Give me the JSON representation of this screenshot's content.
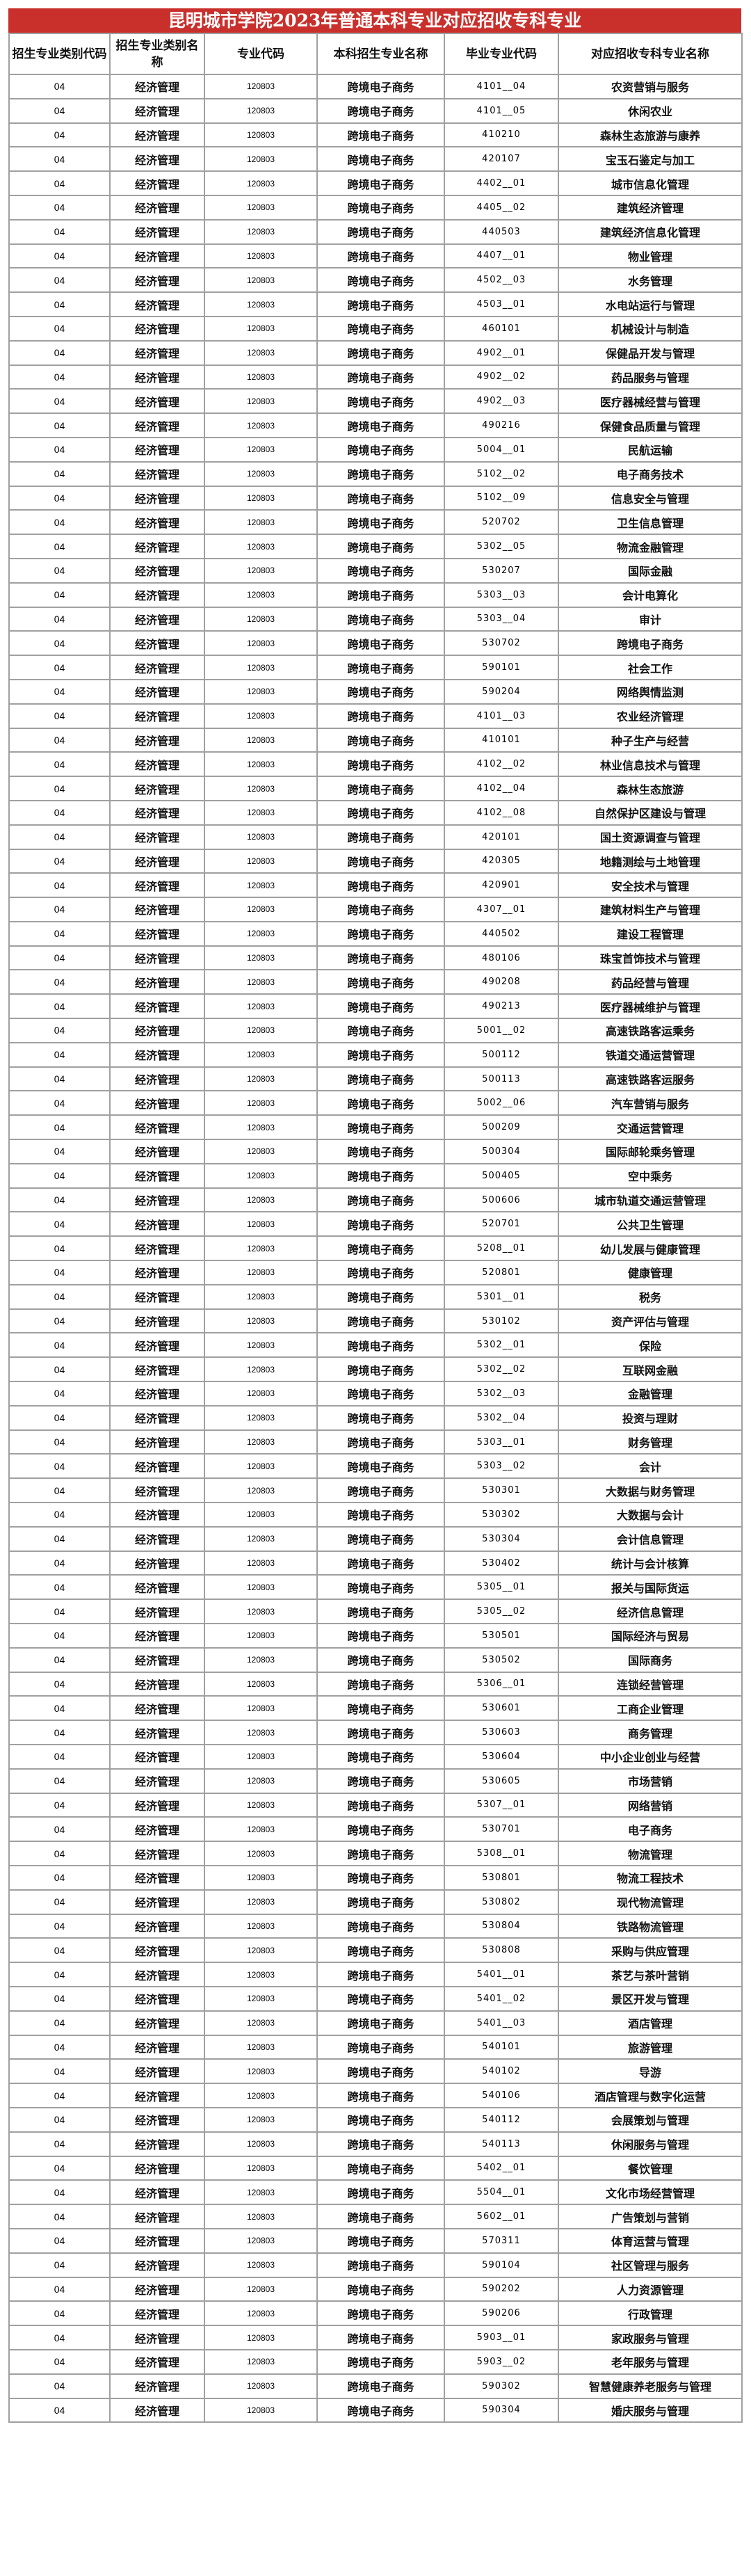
{
  "title": "昆明城市学院2023年普通本科专业对应招收专科专业",
  "colors": {
    "title_bg": "#c9302c",
    "grid": "#a0a0a0"
  },
  "headers": [
    "招生专业类别代码",
    "招生专业类别名称",
    "专业代码",
    "本科招生专业名称",
    "毕业专业代码",
    "对应招收专科专业名称"
  ],
  "common": {
    "category_code": "04",
    "category_name": "经济管理",
    "major_code": "120803",
    "major_name": "跨境电子商务"
  },
  "rows": [
    [
      "4101__04",
      "农资营销与服务"
    ],
    [
      "4101__05",
      "休闲农业"
    ],
    [
      "410210",
      "森林生态旅游与康养"
    ],
    [
      "420107",
      "宝玉石鉴定与加工"
    ],
    [
      "4402__01",
      "城市信息化管理"
    ],
    [
      "4405__02",
      "建筑经济管理"
    ],
    [
      "440503",
      "建筑经济信息化管理"
    ],
    [
      "4407__01",
      "物业管理"
    ],
    [
      "4502__03",
      "水务管理"
    ],
    [
      "4503__01",
      "水电站运行与管理"
    ],
    [
      "460101",
      "机械设计与制造"
    ],
    [
      "4902__01",
      "保健品开发与管理"
    ],
    [
      "4902__02",
      "药品服务与管理"
    ],
    [
      "4902__03",
      "医疗器械经营与管理"
    ],
    [
      "490216",
      "保健食品质量与管理"
    ],
    [
      "5004__01",
      "民航运输"
    ],
    [
      "5102__02",
      "电子商务技术"
    ],
    [
      "5102__09",
      "信息安全与管理"
    ],
    [
      "520702",
      "卫生信息管理"
    ],
    [
      "5302__05",
      "物流金融管理"
    ],
    [
      "530207",
      "国际金融"
    ],
    [
      "5303__03",
      "会计电算化"
    ],
    [
      "5303__04",
      "审计"
    ],
    [
      "530702",
      "跨境电子商务"
    ],
    [
      "590101",
      "社会工作"
    ],
    [
      "590204",
      "网络舆情监测"
    ],
    [
      "4101__03",
      "农业经济管理"
    ],
    [
      "410101",
      "种子生产与经营"
    ],
    [
      "4102__02",
      "林业信息技术与管理"
    ],
    [
      "4102__04",
      "森林生态旅游"
    ],
    [
      "4102__08",
      "自然保护区建设与管理"
    ],
    [
      "420101",
      "国土资源调查与管理"
    ],
    [
      "420305",
      "地籍测绘与土地管理"
    ],
    [
      "420901",
      "安全技术与管理"
    ],
    [
      "4307__01",
      "建筑材料生产与管理"
    ],
    [
      "440502",
      "建设工程管理"
    ],
    [
      "480106",
      "珠宝首饰技术与管理"
    ],
    [
      "490208",
      "药品经营与管理"
    ],
    [
      "490213",
      "医疗器械维护与管理"
    ],
    [
      "5001__02",
      "高速铁路客运乘务"
    ],
    [
      "500112",
      "铁道交通运营管理"
    ],
    [
      "500113",
      "高速铁路客运服务"
    ],
    [
      "5002__06",
      "汽车营销与服务"
    ],
    [
      "500209",
      "交通运营管理"
    ],
    [
      "500304",
      "国际邮轮乘务管理"
    ],
    [
      "500405",
      "空中乘务"
    ],
    [
      "500606",
      "城市轨道交通运营管理"
    ],
    [
      "520701",
      "公共卫生管理"
    ],
    [
      "5208__01",
      "幼儿发展与健康管理"
    ],
    [
      "520801",
      "健康管理"
    ],
    [
      "5301__01",
      "税务"
    ],
    [
      "530102",
      "资产评估与管理"
    ],
    [
      "5302__01",
      "保险"
    ],
    [
      "5302__02",
      "互联网金融"
    ],
    [
      "5302__03",
      "金融管理"
    ],
    [
      "5302__04",
      "投资与理财"
    ],
    [
      "5303__01",
      "财务管理"
    ],
    [
      "5303__02",
      "会计"
    ],
    [
      "530301",
      "大数据与财务管理"
    ],
    [
      "530302",
      "大数据与会计"
    ],
    [
      "530304",
      "会计信息管理"
    ],
    [
      "530402",
      "统计与会计核算"
    ],
    [
      "5305__01",
      "报关与国际货运"
    ],
    [
      "5305__02",
      "经济信息管理"
    ],
    [
      "530501",
      "国际经济与贸易"
    ],
    [
      "530502",
      "国际商务"
    ],
    [
      "5306__01",
      "连锁经营管理"
    ],
    [
      "530601",
      "工商企业管理"
    ],
    [
      "530603",
      "商务管理"
    ],
    [
      "530604",
      "中小企业创业与经营"
    ],
    [
      "530605",
      "市场营销"
    ],
    [
      "5307__01",
      "网络营销"
    ],
    [
      "530701",
      "电子商务"
    ],
    [
      "5308__01",
      "物流管理"
    ],
    [
      "530801",
      "物流工程技术"
    ],
    [
      "530802",
      "现代物流管理"
    ],
    [
      "530804",
      "铁路物流管理"
    ],
    [
      "530808",
      "采购与供应管理"
    ],
    [
      "5401__01",
      "茶艺与茶叶营销"
    ],
    [
      "5401__02",
      "景区开发与管理"
    ],
    [
      "5401__03",
      "酒店管理"
    ],
    [
      "540101",
      "旅游管理"
    ],
    [
      "540102",
      "导游"
    ],
    [
      "540106",
      "酒店管理与数字化运营"
    ],
    [
      "540112",
      "会展策划与管理"
    ],
    [
      "540113",
      "休闲服务与管理"
    ],
    [
      "5402__01",
      "餐饮管理"
    ],
    [
      "5504__01",
      "文化市场经营管理"
    ],
    [
      "5602__01",
      "广告策划与营销"
    ],
    [
      "570311",
      "体育运营与管理"
    ],
    [
      "590104",
      "社区管理与服务"
    ],
    [
      "590202",
      "人力资源管理"
    ],
    [
      "590206",
      "行政管理"
    ],
    [
      "5903__01",
      "家政服务与管理"
    ],
    [
      "5903__02",
      "老年服务与管理"
    ],
    [
      "590302",
      "智慧健康养老服务与管理"
    ],
    [
      "590304",
      "婚庆服务与管理"
    ]
  ]
}
